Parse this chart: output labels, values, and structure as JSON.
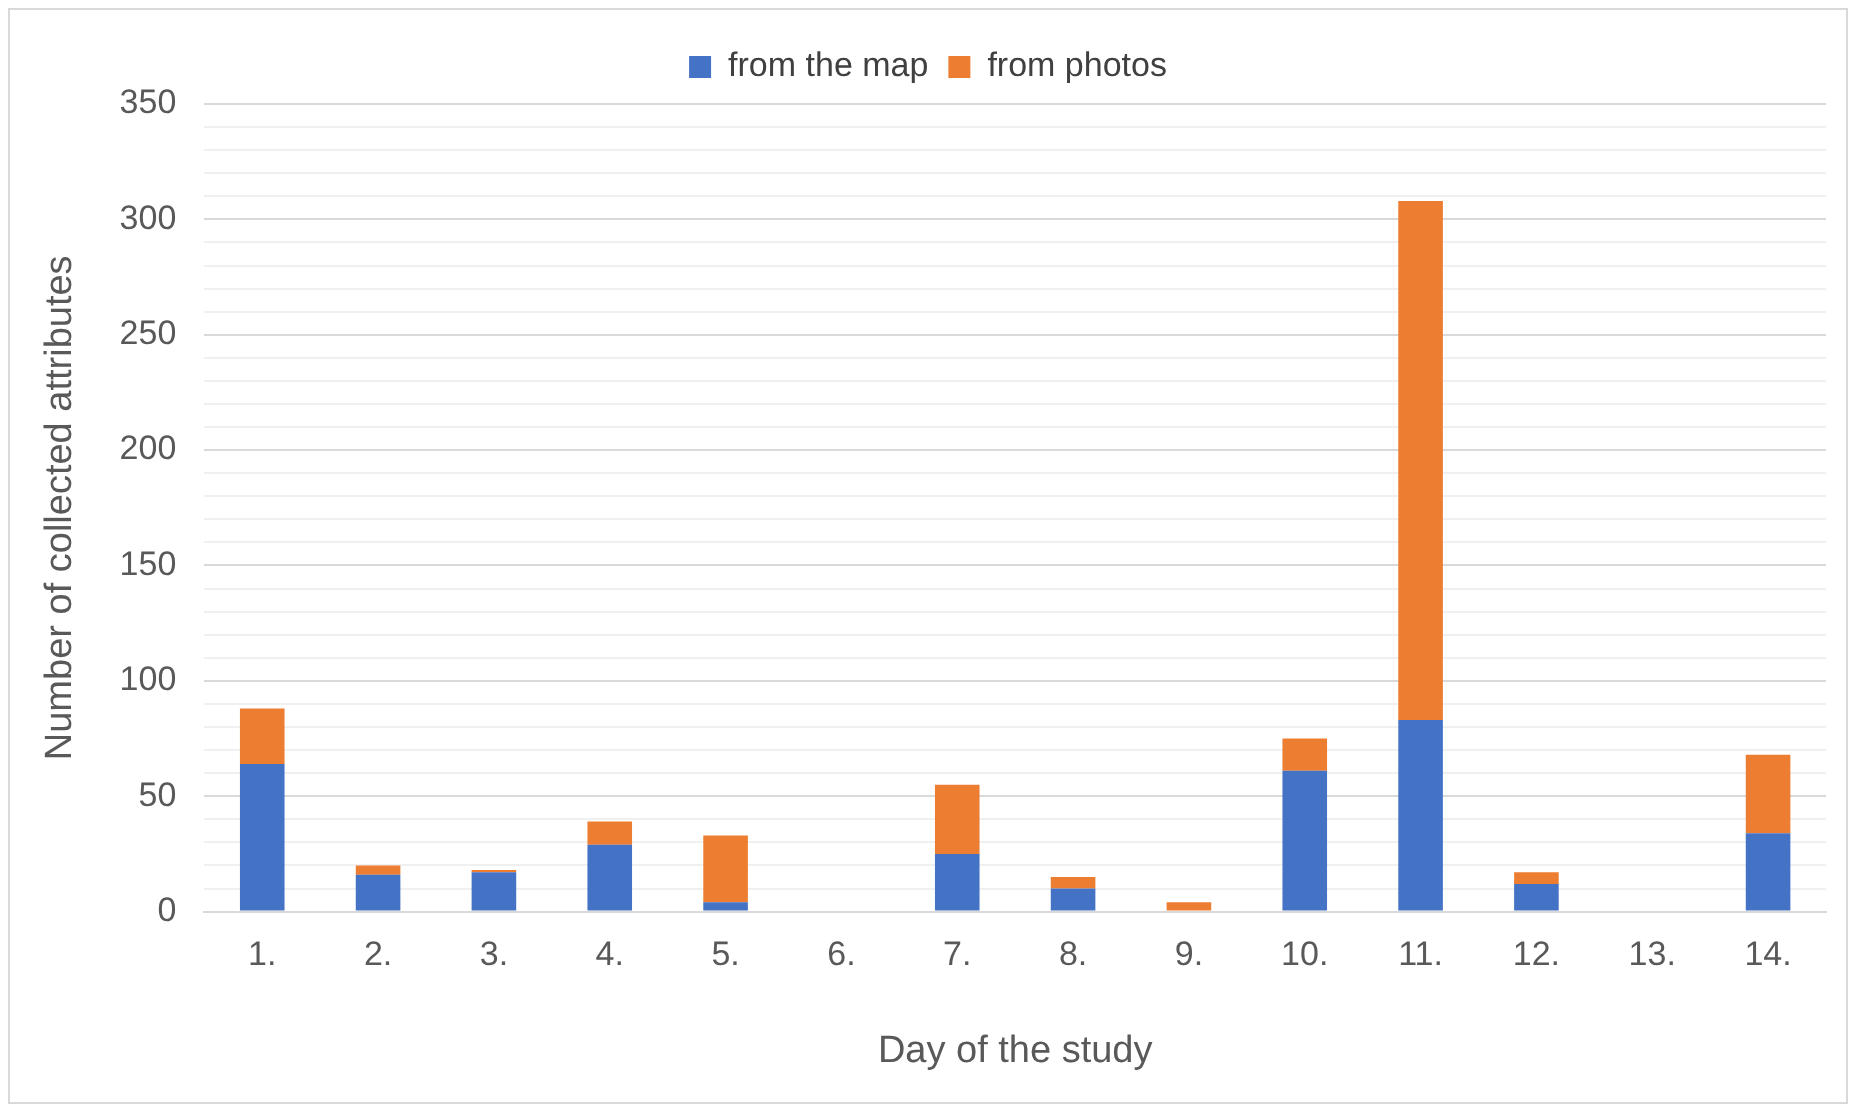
{
  "chart_data": {
    "type": "bar",
    "stacked": true,
    "xlabel": "Day of the study",
    "ylabel": "Number of collected attributes",
    "categories": [
      "1.",
      "2.",
      "3.",
      "4.",
      "5.",
      "6.",
      "7.",
      "8.",
      "9.",
      "10.",
      "11.",
      "12.",
      "13.",
      "14."
    ],
    "series": [
      {
        "name": "from the map",
        "color": "#4472c4",
        "values": [
          64,
          16,
          17,
          29,
          4,
          0,
          25,
          10,
          0,
          61,
          83,
          12,
          0,
          34
        ]
      },
      {
        "name": "from photos",
        "color": "#ed7d31",
        "values": [
          24,
          4,
          1,
          10,
          29,
          0,
          30,
          5,
          4,
          14,
          225,
          5,
          0,
          34
        ]
      }
    ],
    "ylim": [
      0,
      350
    ],
    "yticks": [
      0,
      {
        "value": 10,
        "label": null
      },
      {
        "value": 20,
        "label": null
      },
      {
        "value": 30,
        "label": null
      },
      {
        "value": 40,
        "label": null
      },
      50,
      {
        "value": 60,
        "label": null
      },
      {
        "value": 70,
        "label": null
      },
      {
        "value": 80,
        "label": null
      },
      {
        "value": 90,
        "label": null
      },
      100,
      {
        "value": 110,
        "label": null
      },
      {
        "value": 120,
        "label": null
      },
      {
        "value": 130,
        "label": null
      },
      {
        "value": 140,
        "label": null
      },
      150,
      {
        "value": 160,
        "label": null
      },
      {
        "value": 170,
        "label": null
      },
      {
        "value": 180,
        "label": null
      },
      {
        "value": 190,
        "label": null
      },
      200,
      {
        "value": 210,
        "label": null
      },
      {
        "value": 220,
        "label": null
      },
      {
        "value": 230,
        "label": null
      },
      {
        "value": 240,
        "label": null
      },
      250,
      {
        "value": 260,
        "label": null
      },
      {
        "value": 270,
        "label": null
      },
      {
        "value": 280,
        "label": null
      },
      {
        "value": 290,
        "label": null
      },
      300,
      {
        "value": 310,
        "label": null
      },
      {
        "value": 320,
        "label": null
      },
      {
        "value": 330,
        "label": null
      },
      {
        "value": 340,
        "label": null
      },
      350
    ],
    "grid": "y",
    "legend": "top"
  }
}
